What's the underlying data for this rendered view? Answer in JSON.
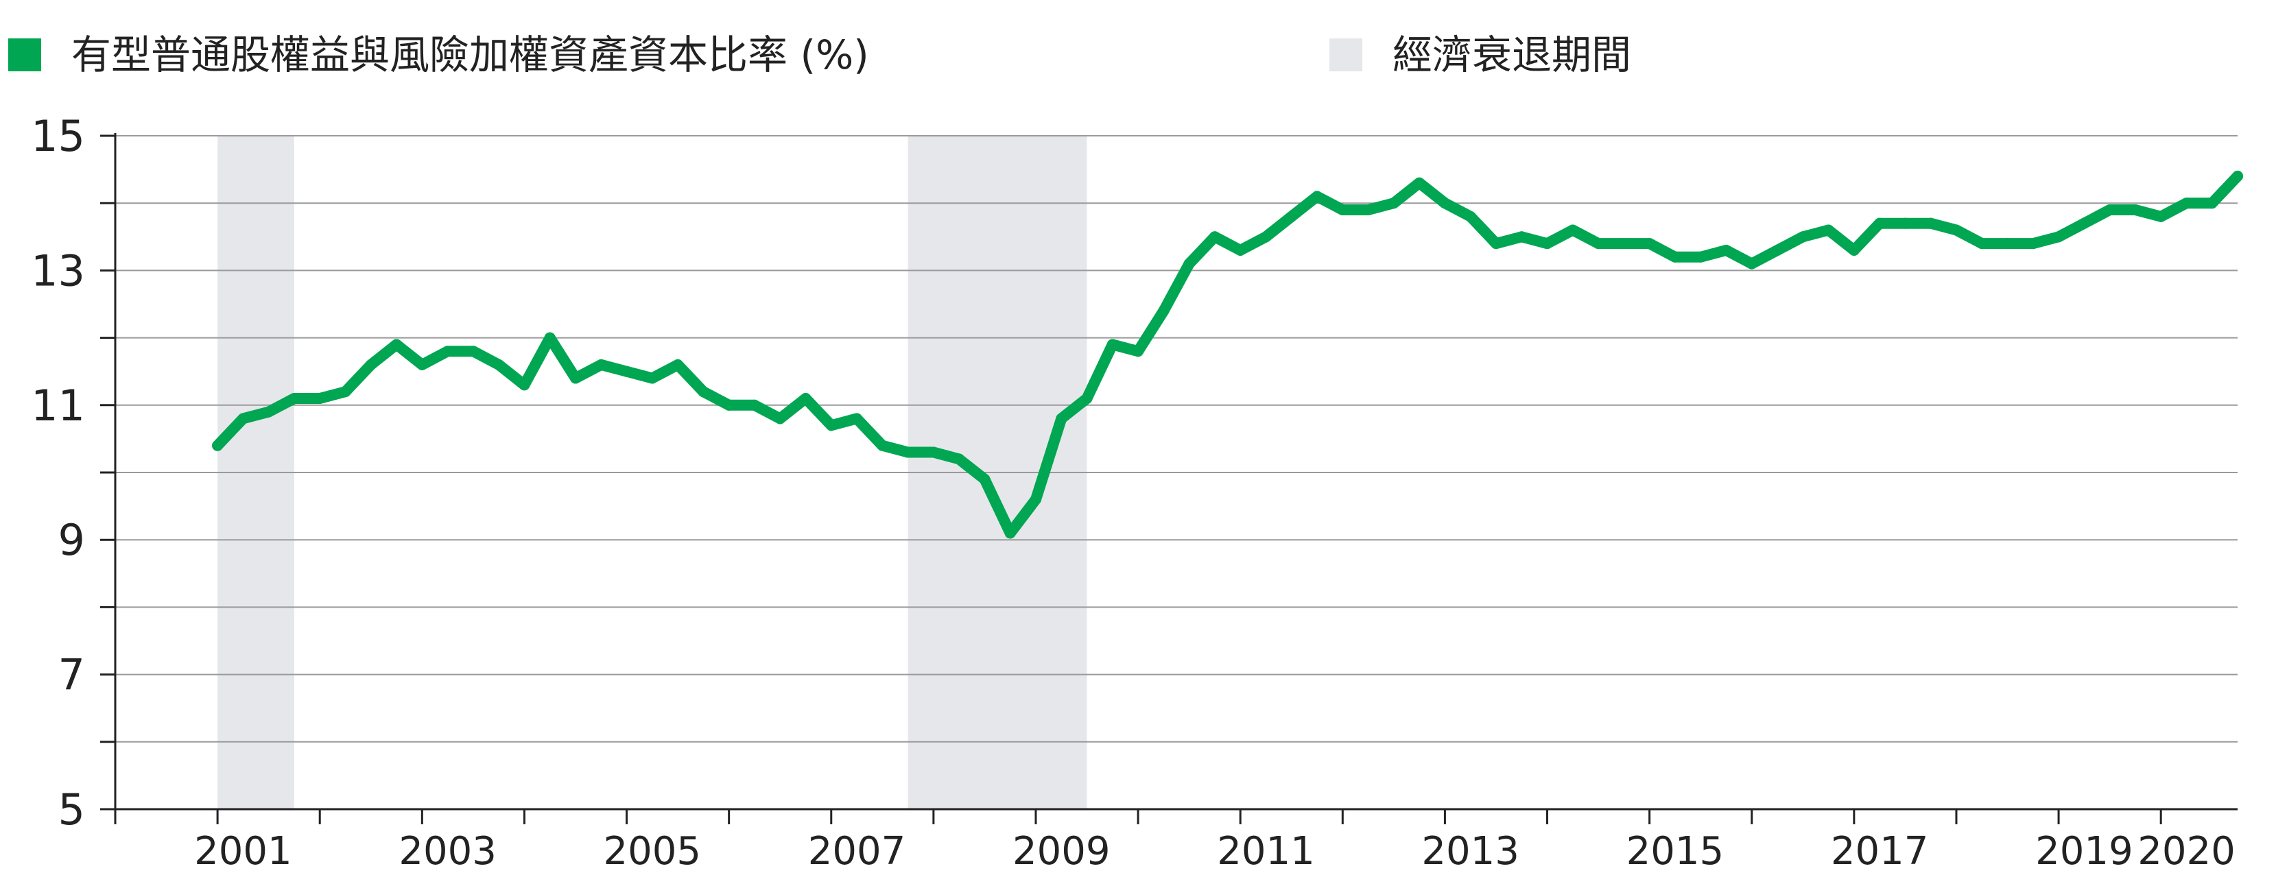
{
  "legend": {
    "series_label": "有型普通股權益與風險加權資產資本比率 (%)",
    "recession_label": "經濟衰退期間"
  },
  "colors": {
    "series": "#00A651",
    "recession": "#E6E7EB",
    "grid": "#9A9A9A",
    "text": "#222222"
  },
  "chart_data": {
    "type": "line",
    "title": "",
    "xlabel": "",
    "ylabel": "",
    "ylim": [
      5,
      15
    ],
    "xlim": [
      2000.0,
      2020.75
    ],
    "yticks": [
      5,
      7,
      9,
      11,
      13,
      15
    ],
    "ygrid_step": 1,
    "xticks": [
      {
        "label": "2001",
        "x": 2001.25
      },
      {
        "label": "2003",
        "x": 2003.25
      },
      {
        "label": "2005",
        "x": 2005.25
      },
      {
        "label": "2007",
        "x": 2007.25
      },
      {
        "label": "2009",
        "x": 2009.25
      },
      {
        "label": "2011",
        "x": 2011.25
      },
      {
        "label": "2013",
        "x": 2013.25
      },
      {
        "label": "2015",
        "x": 2015.25
      },
      {
        "label": "2017",
        "x": 2017.25
      },
      {
        "label": "2019",
        "x": 2019.25
      },
      {
        "label": "2020",
        "x": 2020.25
      }
    ],
    "grid": true,
    "legend_position": "top",
    "recessions": [
      {
        "start": 2001.0,
        "end": 2001.75
      },
      {
        "start": 2007.75,
        "end": 2009.5
      }
    ],
    "series": [
      {
        "name": "有型普通股權益與風險加權資產資本比率 (%)",
        "x": [
          2001.0,
          2001.25,
          2001.5,
          2001.75,
          2002.0,
          2002.25,
          2002.5,
          2002.75,
          2003.0,
          2003.25,
          2003.5,
          2003.75,
          2004.0,
          2004.25,
          2004.5,
          2004.75,
          2005.0,
          2005.25,
          2005.5,
          2005.75,
          2006.0,
          2006.25,
          2006.5,
          2006.75,
          2007.0,
          2007.25,
          2007.5,
          2007.75,
          2008.0,
          2008.25,
          2008.5,
          2008.75,
          2009.0,
          2009.25,
          2009.5,
          2009.75,
          2010.0,
          2010.25,
          2010.5,
          2010.75,
          2011.0,
          2011.25,
          2011.5,
          2011.75,
          2012.0,
          2012.25,
          2012.5,
          2012.75,
          2013.0,
          2013.25,
          2013.5,
          2013.75,
          2014.0,
          2014.25,
          2014.5,
          2014.75,
          2015.0,
          2015.25,
          2015.5,
          2015.75,
          2016.0,
          2016.25,
          2016.5,
          2016.75,
          2017.0,
          2017.25,
          2017.5,
          2017.75,
          2018.0,
          2018.25,
          2018.5,
          2018.75,
          2019.0,
          2019.25,
          2019.5,
          2019.75,
          2020.0,
          2020.25,
          2020.5,
          2020.75
        ],
        "values": [
          10.4,
          10.8,
          10.9,
          11.1,
          11.1,
          11.2,
          11.6,
          11.9,
          11.6,
          11.8,
          11.8,
          11.6,
          11.3,
          12.0,
          11.4,
          11.6,
          11.5,
          11.4,
          11.6,
          11.2,
          11.0,
          11.0,
          10.8,
          11.1,
          10.7,
          10.8,
          10.4,
          10.3,
          10.3,
          10.2,
          9.9,
          9.1,
          9.6,
          10.8,
          11.1,
          11.9,
          11.8,
          12.4,
          13.1,
          13.5,
          13.3,
          13.5,
          13.8,
          14.1,
          13.9,
          13.9,
          14.0,
          14.3,
          14.0,
          13.8,
          13.4,
          13.5,
          13.4,
          13.6,
          13.4,
          13.4,
          13.4,
          13.2,
          13.2,
          13.3,
          13.1,
          13.3,
          13.5,
          13.6,
          13.3,
          13.7,
          13.7,
          13.7,
          13.6,
          13.4,
          13.4,
          13.4,
          13.5,
          13.7,
          13.9,
          13.9,
          13.8,
          14.0,
          14.0,
          14.4
        ]
      }
    ]
  }
}
